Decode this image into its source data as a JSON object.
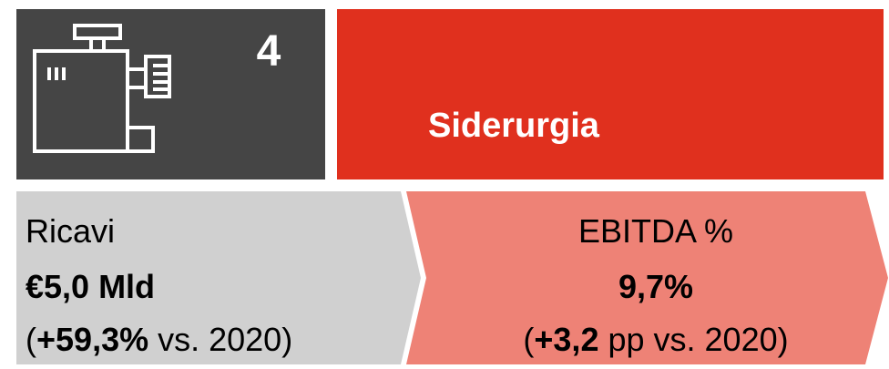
{
  "header": {
    "number": "4",
    "title": "Siderurgia"
  },
  "kpis": [
    {
      "label": "Ricavi",
      "value": "€5,0 Mld",
      "change": {
        "open": "(",
        "bold": "+59,3%",
        "rest": " vs. 2020)"
      }
    },
    {
      "label": "EBITDA %",
      "value": "9,7%",
      "change": {
        "open": "(",
        "bold": "+3,2",
        "rest": " pp vs. 2020)"
      }
    }
  ]
}
